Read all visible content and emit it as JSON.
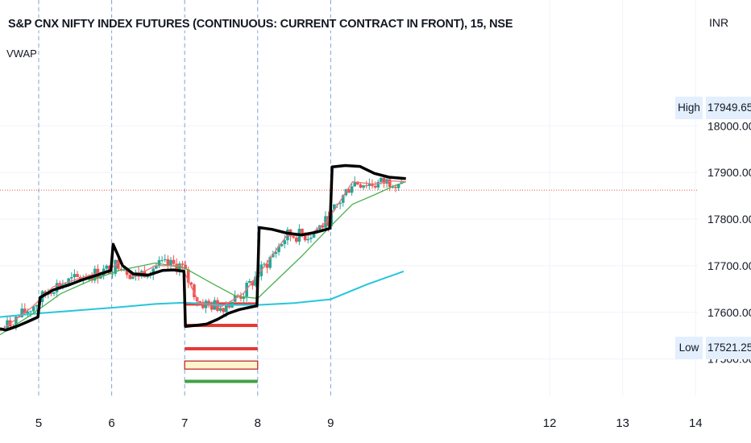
{
  "header": {
    "title": "S&P CNX NIFTY INDEX FUTURES (CONTINUOUS: CURRENT CONTRACT IN FRONT), 15, NSE",
    "indicator_label": "VWAP",
    "currency": "INR"
  },
  "price_tags": {
    "high_label": "High",
    "high_value": "17949.65",
    "low_label": "Low",
    "low_value": "17521.25"
  },
  "chart_data": {
    "type": "candlestick",
    "title": "S&P CNX NIFTY INDEX FUTURES (CONTINUOUS: CURRENT CONTRACT IN FRONT), 15, NSE",
    "x_ticks": [
      {
        "x": 5,
        "label": "5"
      },
      {
        "x": 6,
        "label": "6"
      },
      {
        "x": 7,
        "label": "7"
      },
      {
        "x": 8,
        "label": "8"
      },
      {
        "x": 9,
        "label": "9"
      },
      {
        "x": 12,
        "label": "12"
      },
      {
        "x": 13,
        "label": "13"
      },
      {
        "x": 14,
        "label": "14"
      }
    ],
    "session_starts": [
      5,
      6,
      7,
      8,
      9
    ],
    "y_ticks": [
      {
        "y": 18000,
        "label": "18000.00"
      },
      {
        "y": 17900,
        "label": "17900.00"
      },
      {
        "y": 17800,
        "label": "17800.00"
      },
      {
        "y": 17700,
        "label": "17700.00"
      },
      {
        "y": 17600,
        "label": "17600.00"
      },
      {
        "y": 17500,
        "label": "17500.00"
      }
    ],
    "ylim": [
      17420,
      18270
    ],
    "xlim": [
      4.47,
      14.03
    ],
    "last_price": 17862,
    "colors": {
      "up": "#26a69a",
      "down": "#ef5350",
      "vwap": "#000000",
      "ema_fast": "#f07178",
      "ema_mid": "#4caf50",
      "ema_slow": "#26c6da",
      "grid": "#f0f3fa",
      "session": "#7fa6d6"
    },
    "vwap": [
      {
        "x": 4.47,
        "y": 17565
      },
      {
        "x": 4.55,
        "y": 17562
      },
      {
        "x": 4.7,
        "y": 17570
      },
      {
        "x": 4.85,
        "y": 17580
      },
      {
        "x": 4.99,
        "y": 17590
      },
      {
        "x": 5.02,
        "y": 17632
      },
      {
        "x": 5.2,
        "y": 17648
      },
      {
        "x": 5.4,
        "y": 17658
      },
      {
        "x": 5.6,
        "y": 17670
      },
      {
        "x": 5.8,
        "y": 17680
      },
      {
        "x": 5.99,
        "y": 17690
      },
      {
        "x": 6.02,
        "y": 17746
      },
      {
        "x": 6.15,
        "y": 17700
      },
      {
        "x": 6.3,
        "y": 17682
      },
      {
        "x": 6.5,
        "y": 17680
      },
      {
        "x": 6.7,
        "y": 17690
      },
      {
        "x": 6.85,
        "y": 17691
      },
      {
        "x": 6.99,
        "y": 17688
      },
      {
        "x": 7.01,
        "y": 17570
      },
      {
        "x": 7.15,
        "y": 17572
      },
      {
        "x": 7.3,
        "y": 17575
      },
      {
        "x": 7.45,
        "y": 17585
      },
      {
        "x": 7.6,
        "y": 17598
      },
      {
        "x": 7.75,
        "y": 17606
      },
      {
        "x": 7.99,
        "y": 17614
      },
      {
        "x": 8.02,
        "y": 17782
      },
      {
        "x": 8.2,
        "y": 17778
      },
      {
        "x": 8.4,
        "y": 17770
      },
      {
        "x": 8.6,
        "y": 17766
      },
      {
        "x": 8.8,
        "y": 17772
      },
      {
        "x": 8.99,
        "y": 17780
      },
      {
        "x": 9.02,
        "y": 17912
      },
      {
        "x": 9.2,
        "y": 17915
      },
      {
        "x": 9.4,
        "y": 17913
      },
      {
        "x": 9.6,
        "y": 17898
      },
      {
        "x": 9.8,
        "y": 17890
      },
      {
        "x": 10.03,
        "y": 17887
      }
    ],
    "ema_fast": [
      {
        "x": 4.47,
        "y": 17560
      },
      {
        "x": 4.9,
        "y": 17610
      },
      {
        "x": 5.2,
        "y": 17655
      },
      {
        "x": 5.6,
        "y": 17675
      },
      {
        "x": 5.95,
        "y": 17690
      },
      {
        "x": 6.1,
        "y": 17708
      },
      {
        "x": 6.3,
        "y": 17676
      },
      {
        "x": 6.6,
        "y": 17700
      },
      {
        "x": 6.95,
        "y": 17700
      },
      {
        "x": 7.2,
        "y": 17620
      },
      {
        "x": 7.5,
        "y": 17612
      },
      {
        "x": 7.8,
        "y": 17640
      },
      {
        "x": 8.1,
        "y": 17700
      },
      {
        "x": 8.4,
        "y": 17765
      },
      {
        "x": 8.7,
        "y": 17765
      },
      {
        "x": 8.95,
        "y": 17795
      },
      {
        "x": 9.3,
        "y": 17880
      },
      {
        "x": 9.6,
        "y": 17875
      },
      {
        "x": 9.85,
        "y": 17882
      },
      {
        "x": 10.03,
        "y": 17880
      }
    ],
    "ema_mid": [
      {
        "x": 4.47,
        "y": 17552
      },
      {
        "x": 4.9,
        "y": 17595
      },
      {
        "x": 5.3,
        "y": 17640
      },
      {
        "x": 5.7,
        "y": 17668
      },
      {
        "x": 6.1,
        "y": 17690
      },
      {
        "x": 6.6,
        "y": 17706
      },
      {
        "x": 7.0,
        "y": 17695
      },
      {
        "x": 7.4,
        "y": 17660
      },
      {
        "x": 7.7,
        "y": 17635
      },
      {
        "x": 8.0,
        "y": 17630
      },
      {
        "x": 8.3,
        "y": 17675
      },
      {
        "x": 8.6,
        "y": 17720
      },
      {
        "x": 9.0,
        "y": 17785
      },
      {
        "x": 9.3,
        "y": 17832
      },
      {
        "x": 9.6,
        "y": 17852
      },
      {
        "x": 9.85,
        "y": 17870
      },
      {
        "x": 10.03,
        "y": 17880
      }
    ],
    "ema_slow": [
      {
        "x": 4.47,
        "y": 17590
      },
      {
        "x": 5.0,
        "y": 17598
      },
      {
        "x": 5.6,
        "y": 17605
      },
      {
        "x": 6.1,
        "y": 17611
      },
      {
        "x": 6.6,
        "y": 17618
      },
      {
        "x": 7.0,
        "y": 17621
      },
      {
        "x": 7.5,
        "y": 17616
      },
      {
        "x": 8.0,
        "y": 17616
      },
      {
        "x": 8.5,
        "y": 17620
      },
      {
        "x": 9.0,
        "y": 17628
      },
      {
        "x": 9.5,
        "y": 17660
      },
      {
        "x": 10.0,
        "y": 17688
      }
    ],
    "levels": [
      {
        "y": 17618,
        "x_start": 7.0,
        "x_end": 8.0,
        "color": "#e53935"
      },
      {
        "y": 17572,
        "x_start": 7.0,
        "x_end": 8.0,
        "color": "#e53935"
      },
      {
        "y": 17522,
        "x_start": 7.0,
        "x_end": 8.0,
        "color": "#e53935"
      },
      {
        "y": 17487,
        "x_start": 7.0,
        "x_end": 8.0,
        "color": "#fff4cc",
        "outline": "#b71c1c"
      },
      {
        "y": 17452,
        "x_start": 7.0,
        "x_end": 8.0,
        "color": "#43a047"
      }
    ]
  }
}
